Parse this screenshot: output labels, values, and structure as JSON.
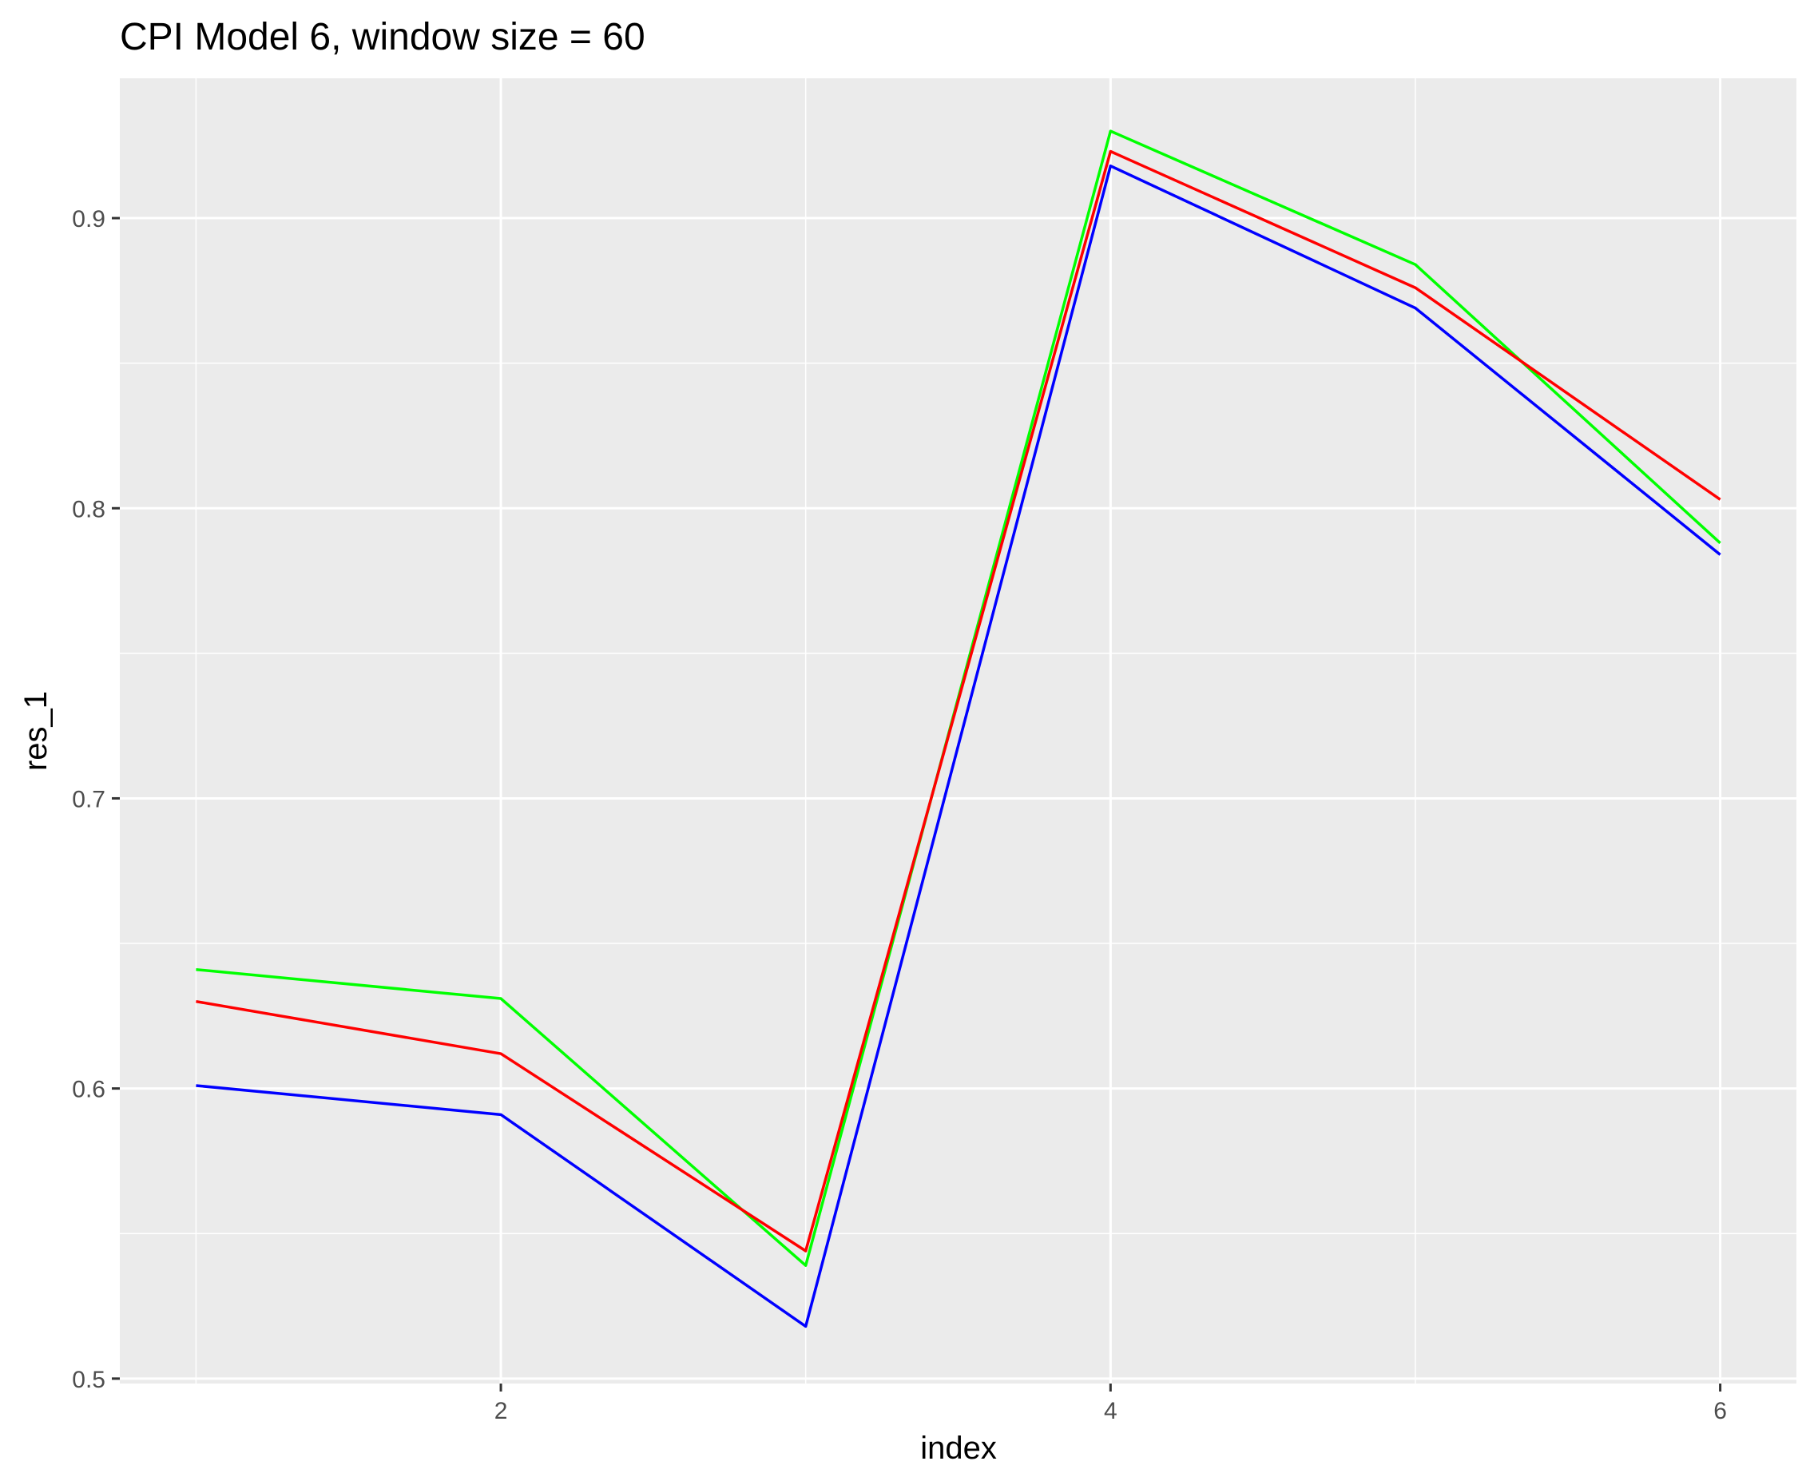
{
  "chart_data": {
    "type": "line",
    "title": "CPI Model 6, window size = 60",
    "xlabel": "index",
    "ylabel": "res_1",
    "x": [
      1,
      2,
      3,
      4,
      5,
      6
    ],
    "xlim": [
      0.75,
      6.25
    ],
    "ylim": [
      0.4983,
      0.9482
    ],
    "x_ticks": [
      2,
      4,
      6
    ],
    "x_tick_labels": [
      "2",
      "4",
      "6"
    ],
    "y_ticks": [
      0.5,
      0.6,
      0.7,
      0.8,
      0.9
    ],
    "y_tick_labels": [
      "0.5",
      "0.6",
      "0.7",
      "0.8",
      "0.9"
    ],
    "grid": true,
    "legend": "none",
    "series": [
      {
        "color": "#00ff00",
        "values": [
          0.641,
          0.631,
          0.539,
          0.93,
          0.884,
          0.788
        ]
      },
      {
        "color": "#ff0000",
        "values": [
          0.63,
          0.612,
          0.544,
          0.923,
          0.876,
          0.803
        ]
      },
      {
        "color": "#0000ff",
        "values": [
          0.601,
          0.591,
          0.518,
          0.918,
          0.869,
          0.784
        ]
      }
    ]
  }
}
